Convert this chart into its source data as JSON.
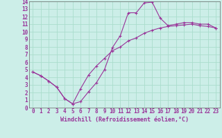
{
  "xlabel": "Windchill (Refroidissement éolien,°C)",
  "background_color": "#cceee8",
  "line_color": "#993399",
  "grid_color": "#aaddcc",
  "xlim": [
    -0.5,
    23.5
  ],
  "ylim": [
    0,
    14
  ],
  "xticks": [
    0,
    1,
    2,
    3,
    4,
    5,
    6,
    7,
    8,
    9,
    10,
    11,
    12,
    13,
    14,
    15,
    16,
    17,
    18,
    19,
    20,
    21,
    22,
    23
  ],
  "yticks": [
    0,
    1,
    2,
    3,
    4,
    5,
    6,
    7,
    8,
    9,
    10,
    11,
    12,
    13,
    14
  ],
  "curve1_x": [
    0,
    1,
    2,
    3,
    4,
    5,
    6,
    7,
    8,
    9,
    10,
    11,
    12,
    13,
    14,
    15,
    16,
    17,
    18,
    19,
    20,
    21,
    22,
    23
  ],
  "curve1_y": [
    4.7,
    4.2,
    3.5,
    2.7,
    1.2,
    0.5,
    0.8,
    2.1,
    3.3,
    5.0,
    7.9,
    9.5,
    12.5,
    12.5,
    13.8,
    13.9,
    11.8,
    10.8,
    11.0,
    11.2,
    11.2,
    11.0,
    11.0,
    10.5
  ],
  "curve2_x": [
    0,
    1,
    2,
    3,
    4,
    5,
    6,
    7,
    8,
    9,
    10,
    11,
    12,
    13,
    14,
    15,
    16,
    17,
    18,
    19,
    20,
    21,
    22,
    23
  ],
  "curve2_y": [
    4.7,
    4.2,
    3.5,
    2.7,
    1.2,
    0.5,
    2.5,
    4.3,
    5.5,
    6.5,
    7.5,
    8.0,
    8.8,
    9.2,
    9.8,
    10.2,
    10.5,
    10.7,
    10.8,
    10.9,
    11.0,
    10.8,
    10.7,
    10.5
  ],
  "tick_fontsize": 5.5,
  "xlabel_fontsize": 6.0
}
